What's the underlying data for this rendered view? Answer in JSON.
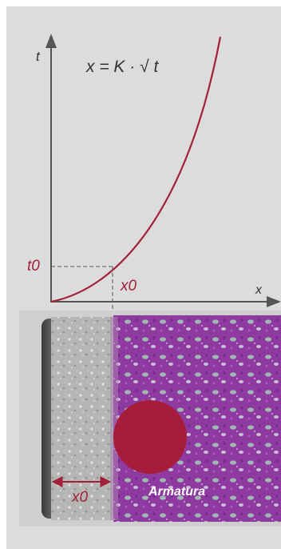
{
  "diagram": {
    "formula": "x = K · √ t",
    "axis_y_label": "t",
    "axis_x_label": "x",
    "t0_label": "t0",
    "x0_label": "x0",
    "x0_bottom_label": "x0",
    "armatura_label": "Armatura"
  },
  "colors": {
    "background": "#dcdcdc",
    "curve": "#a3203b",
    "axis": "#555555",
    "circle": "#a51d3b",
    "concrete_grey": "#a9aba8",
    "phenol_purple": "#8a2f9a"
  }
}
